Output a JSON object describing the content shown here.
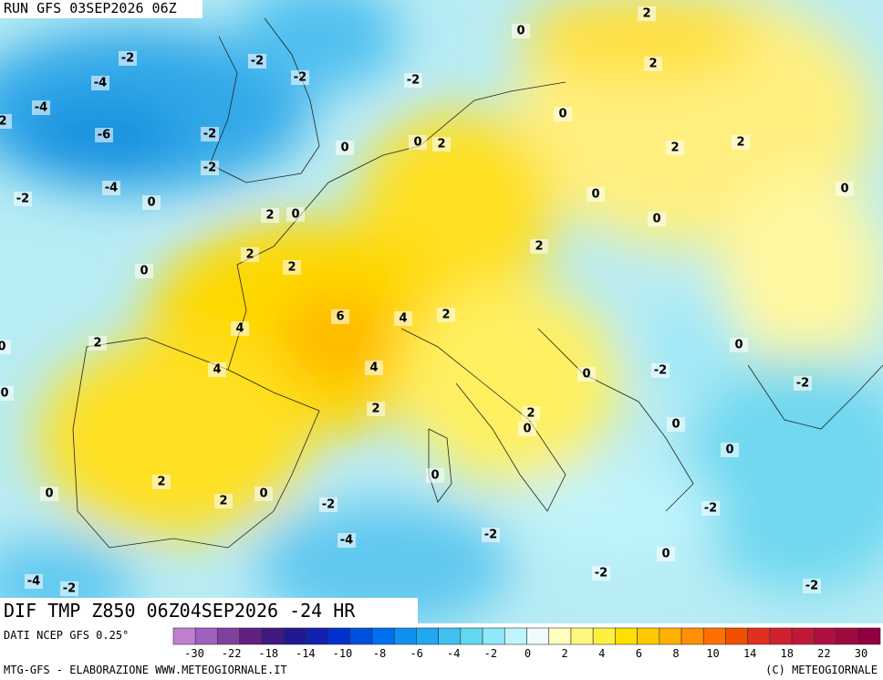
{
  "header": {
    "title": "RUN GFS 03SEP2026 06Z"
  },
  "map": {
    "labels": [
      2,
      0,
      -2,
      -2,
      2,
      -4,
      -2,
      -2,
      -4,
      2,
      0,
      -6,
      -2,
      0,
      0,
      2,
      2,
      2,
      -2,
      -4,
      -2,
      0,
      0,
      0,
      2,
      0,
      0,
      2,
      2,
      0,
      2,
      6,
      4,
      2,
      4,
      2,
      0,
      0,
      4,
      4,
      0,
      -2,
      -2,
      0,
      2,
      2,
      0,
      0,
      0,
      0,
      2,
      0,
      2,
      0,
      -2,
      -2,
      -2,
      -4,
      0,
      -2,
      -4,
      -2,
      -2
    ]
  },
  "footer": {
    "title": "DIF TMP Z850 06Z04SEP2026 -24 HR",
    "source": "DATI NCEP GFS 0.25°",
    "credit_left": "MTG-GFS - ELABORAZIONE WWW.METEOGIORNALE.IT",
    "credit_right": "(C) METEOGIORNALE"
  },
  "colorbar": {
    "colors": [
      "#c080d0",
      "#a060c0",
      "#8040a0",
      "#602080",
      "#401880",
      "#201890",
      "#1020b0",
      "#0030d0",
      "#0050e0",
      "#0070f0",
      "#1090f0",
      "#20a8f0",
      "#40c0f0",
      "#60d8f0",
      "#90e8f8",
      "#c0f4fc",
      "#f0fcfc",
      "#ffffc0",
      "#fff880",
      "#fff040",
      "#ffe000",
      "#ffc800",
      "#ffb000",
      "#ff9000",
      "#ff7000",
      "#f05000",
      "#e03020",
      "#d02030",
      "#c01838",
      "#b01040",
      "#a00840",
      "#900040"
    ],
    "ticks": [
      -30,
      -22,
      -18,
      -14,
      -10,
      -8,
      -6,
      -4,
      -2,
      0,
      2,
      4,
      6,
      8,
      10,
      14,
      18,
      22,
      30
    ]
  }
}
